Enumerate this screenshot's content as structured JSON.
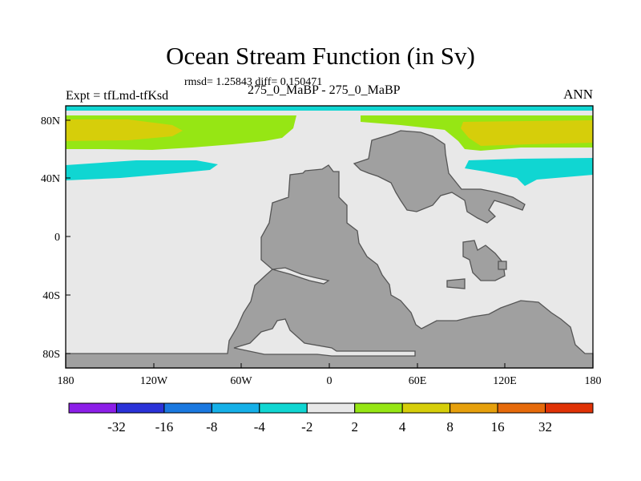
{
  "title": "Ocean Stream Function (in Sv)",
  "stats": "rmsd= 1.25843 diff= 0.150471",
  "left_label": "Expt = tfLmd-tfKsd",
  "center_label": "275_0_MaBP - 275_0_MaBP",
  "right_label": "ANN",
  "x_ticks": [
    "180",
    "120W",
    "60W",
    "0",
    "60E",
    "120E",
    "180"
  ],
  "y_ticks": [
    "80N",
    "40N",
    "0",
    "40S",
    "80S"
  ],
  "colorbar": {
    "labels": [
      "-32",
      "-16",
      "-8",
      "-4",
      "-2",
      "2",
      "4",
      "8",
      "16",
      "32"
    ],
    "colors": [
      "#8c1ee8",
      "#2a32d8",
      "#1a78e0",
      "#15b0e8",
      "#10d6d2",
      "#e8e8e8",
      "#96e614",
      "#d6ce0a",
      "#e6a00c",
      "#e66a0a",
      "#e03206"
    ]
  },
  "map_colors": {
    "land": "#a0a0a0",
    "background": "#e8e8e8"
  }
}
